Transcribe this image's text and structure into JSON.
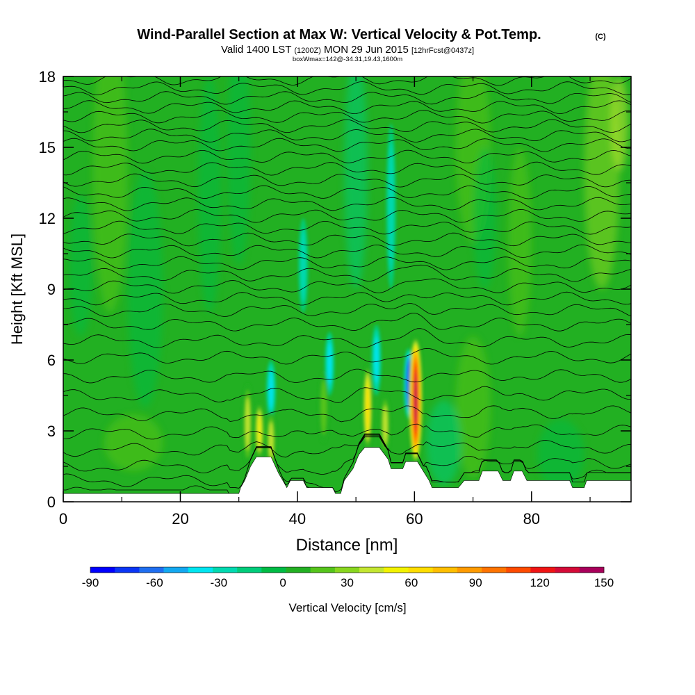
{
  "header": {
    "title": "Wind-Parallel Section at Max W: Vertical Velocity & Pot.Temp.",
    "copyright": "(C)",
    "valid_main": "Valid 1400 LST",
    "valid_z": "(1200Z)",
    "valid_date": "MON 29 Jun 2015",
    "valid_fcst": "[12hrFcst@0437z]",
    "subtitle": "boxWmax=142@-34.31,19.43,1600m"
  },
  "colorbar": {
    "label": "Vertical Velocity [cm/s]",
    "ticks": [
      "-90",
      "-60",
      "-30",
      "0",
      "30",
      "60",
      "90",
      "120",
      "150"
    ],
    "colors": [
      "#0000ff",
      "#0a35f5",
      "#1e6ef0",
      "#12a8f0",
      "#00e5f0",
      "#00d9b0",
      "#00cc7a",
      "#00bb44",
      "#22b022",
      "#55c41a",
      "#88d61e",
      "#c3e630",
      "#f2f200",
      "#ffdd00",
      "#ffbe00",
      "#ff9a00",
      "#ff7300",
      "#ff4a00",
      "#ef1414",
      "#d40a37",
      "#a8005a"
    ]
  },
  "chart_data": {
    "type": "heatmap",
    "title": "Wind-Parallel Section at Max W: Vertical Velocity & Pot.Temp.",
    "xlabel": "Distance [nm]",
    "ylabel": "Height [Kft MSL]",
    "xlim": [
      0,
      97
    ],
    "ylim": [
      0,
      18
    ],
    "x_ticks": [
      0,
      20,
      40,
      60,
      80
    ],
    "y_ticks": [
      0,
      3,
      6,
      9,
      12,
      15,
      18
    ],
    "x_tick_labels": [
      "0",
      "20",
      "40",
      "60",
      "80"
    ],
    "y_tick_labels": [
      "0",
      "3",
      "6",
      "9",
      "12",
      "15",
      "18"
    ],
    "colorbar_range": [
      -90,
      150
    ],
    "background_w": 10,
    "updrafts": [
      {
        "x": 31.5,
        "y_bottom": 1.6,
        "y_top": 5.0,
        "w": 40
      },
      {
        "x": 33.5,
        "y_bottom": 1.8,
        "y_top": 4.2,
        "w": 50
      },
      {
        "x": 35.5,
        "y_bottom": 1.4,
        "y_top": 3.8,
        "w": 40
      },
      {
        "x": 44.5,
        "y_bottom": 2.5,
        "y_top": 5.5,
        "w": 25
      },
      {
        "x": 52.0,
        "y_bottom": 2.2,
        "y_top": 5.8,
        "w": 55
      },
      {
        "x": 55.0,
        "y_bottom": 2.0,
        "y_top": 4.5,
        "w": 40
      },
      {
        "x": 60.2,
        "y_bottom": 1.6,
        "y_top": 7.0,
        "w": 142
      }
    ],
    "downdrafts": [
      {
        "x": 35.5,
        "y_bottom": 3.5,
        "y_top": 6.0,
        "w": -30
      },
      {
        "x": 45.5,
        "y_bottom": 4.5,
        "y_top": 7.2,
        "w": -35
      },
      {
        "x": 53.5,
        "y_bottom": 4.5,
        "y_top": 7.5,
        "w": -30
      },
      {
        "x": 59.0,
        "y_bottom": 3.5,
        "y_top": 6.5,
        "w": -80
      },
      {
        "x": 41.0,
        "y_bottom": 8.0,
        "y_top": 12.0,
        "w": -20
      },
      {
        "x": 56.0,
        "y_bottom": 9.0,
        "y_top": 16.0,
        "w": -20
      }
    ],
    "terrain": [
      [
        0,
        0.35
      ],
      [
        30,
        0.35
      ],
      [
        30.3,
        0.6
      ],
      [
        31,
        0.9
      ],
      [
        32,
        1.5
      ],
      [
        33,
        1.9
      ],
      [
        35.5,
        1.9
      ],
      [
        36.8,
        1.2
      ],
      [
        37.5,
        0.9
      ],
      [
        38.2,
        0.6
      ],
      [
        38.8,
        0.9
      ],
      [
        41,
        0.9
      ],
      [
        41.6,
        0.6
      ],
      [
        46,
        0.6
      ],
      [
        46.5,
        0.35
      ],
      [
        47.4,
        0.35
      ],
      [
        48,
        0.9
      ],
      [
        49.5,
        1.4
      ],
      [
        50.5,
        2.0
      ],
      [
        51.5,
        2.3
      ],
      [
        54,
        2.3
      ],
      [
        55.5,
        1.8
      ],
      [
        56,
        1.4
      ],
      [
        58,
        1.4
      ],
      [
        58.5,
        1.7
      ],
      [
        60.5,
        1.7
      ],
      [
        61.5,
        1.3
      ],
      [
        62.5,
        0.9
      ],
      [
        63,
        0.6
      ],
      [
        67.5,
        0.6
      ],
      [
        68.5,
        0.9
      ],
      [
        71,
        0.9
      ],
      [
        71.6,
        1.3
      ],
      [
        74.3,
        1.3
      ],
      [
        75.1,
        0.9
      ],
      [
        76.4,
        0.9
      ],
      [
        77,
        1.3
      ],
      [
        78.4,
        1.3
      ],
      [
        79.2,
        0.9
      ],
      [
        86.5,
        0.9
      ],
      [
        87,
        0.6
      ],
      [
        89,
        0.6
      ],
      [
        89.4,
        0.9
      ],
      [
        97,
        0.9
      ]
    ],
    "isentrope_levels": [
      "20",
      "22",
      "24",
      "26",
      "28",
      "30",
      "32",
      "34",
      "36",
      "38",
      "40",
      "42",
      "44",
      "46",
      "48",
      "50",
      "52",
      "54",
      "56",
      "58",
      "60",
      "62",
      "64",
      "66",
      "68",
      "70",
      "72",
      "74",
      "76",
      "78",
      "80",
      "82",
      "84",
      "86"
    ],
    "isentrope_y_left": [
      0.4,
      0.9,
      1.5,
      2.2,
      2.9,
      3.7,
      4.5,
      5.3,
      6.1,
      6.8,
      7.5,
      8.1,
      8.6,
      9.1,
      9.6,
      10.1,
      10.6,
      11.1,
      11.6,
      12.1,
      12.6,
      13.1,
      13.6,
      14.1,
      14.6,
      15.1,
      15.5,
      15.9,
      16.3,
      16.7,
      17.1,
      17.5,
      17.9,
      18.3
    ]
  }
}
